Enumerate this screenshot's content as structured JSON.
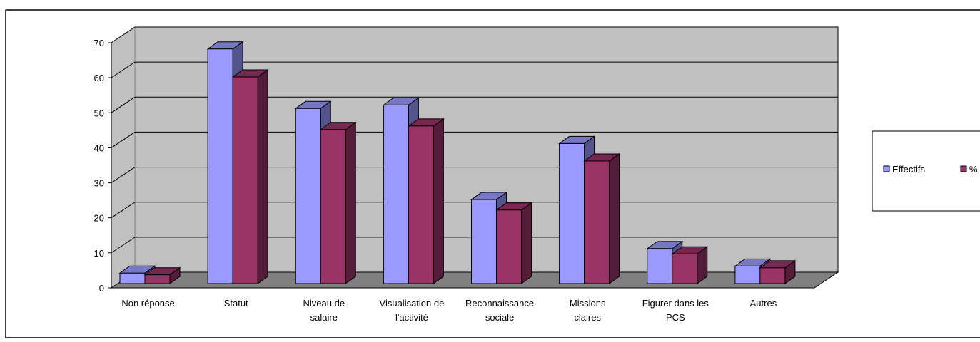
{
  "chart_data": {
    "type": "bar",
    "title": "",
    "xlabel": "",
    "ylabel": "",
    "ylim": [
      0,
      70
    ],
    "yticks": [
      0,
      10,
      20,
      30,
      40,
      50,
      60,
      70
    ],
    "grid": true,
    "legend_position": "right",
    "categories": [
      [
        "Non réponse"
      ],
      [
        "Statut"
      ],
      [
        "Niveau de",
        "salaire"
      ],
      [
        "Visualisation de",
        "l'activité"
      ],
      [
        "Reconnaissance",
        "sociale"
      ],
      [
        "Missions",
        "claires"
      ],
      [
        "Figurer dans les",
        "PCS"
      ],
      [
        "Autres"
      ]
    ],
    "series": [
      {
        "name": "Effectifs",
        "color": "#9999ff",
        "values": [
          3,
          67,
          50,
          51,
          24,
          40,
          10,
          5
        ]
      },
      {
        "name": "%",
        "color": "#993366",
        "values": [
          2.5,
          59,
          44,
          45,
          21,
          35,
          8.5,
          4.5
        ]
      }
    ]
  }
}
